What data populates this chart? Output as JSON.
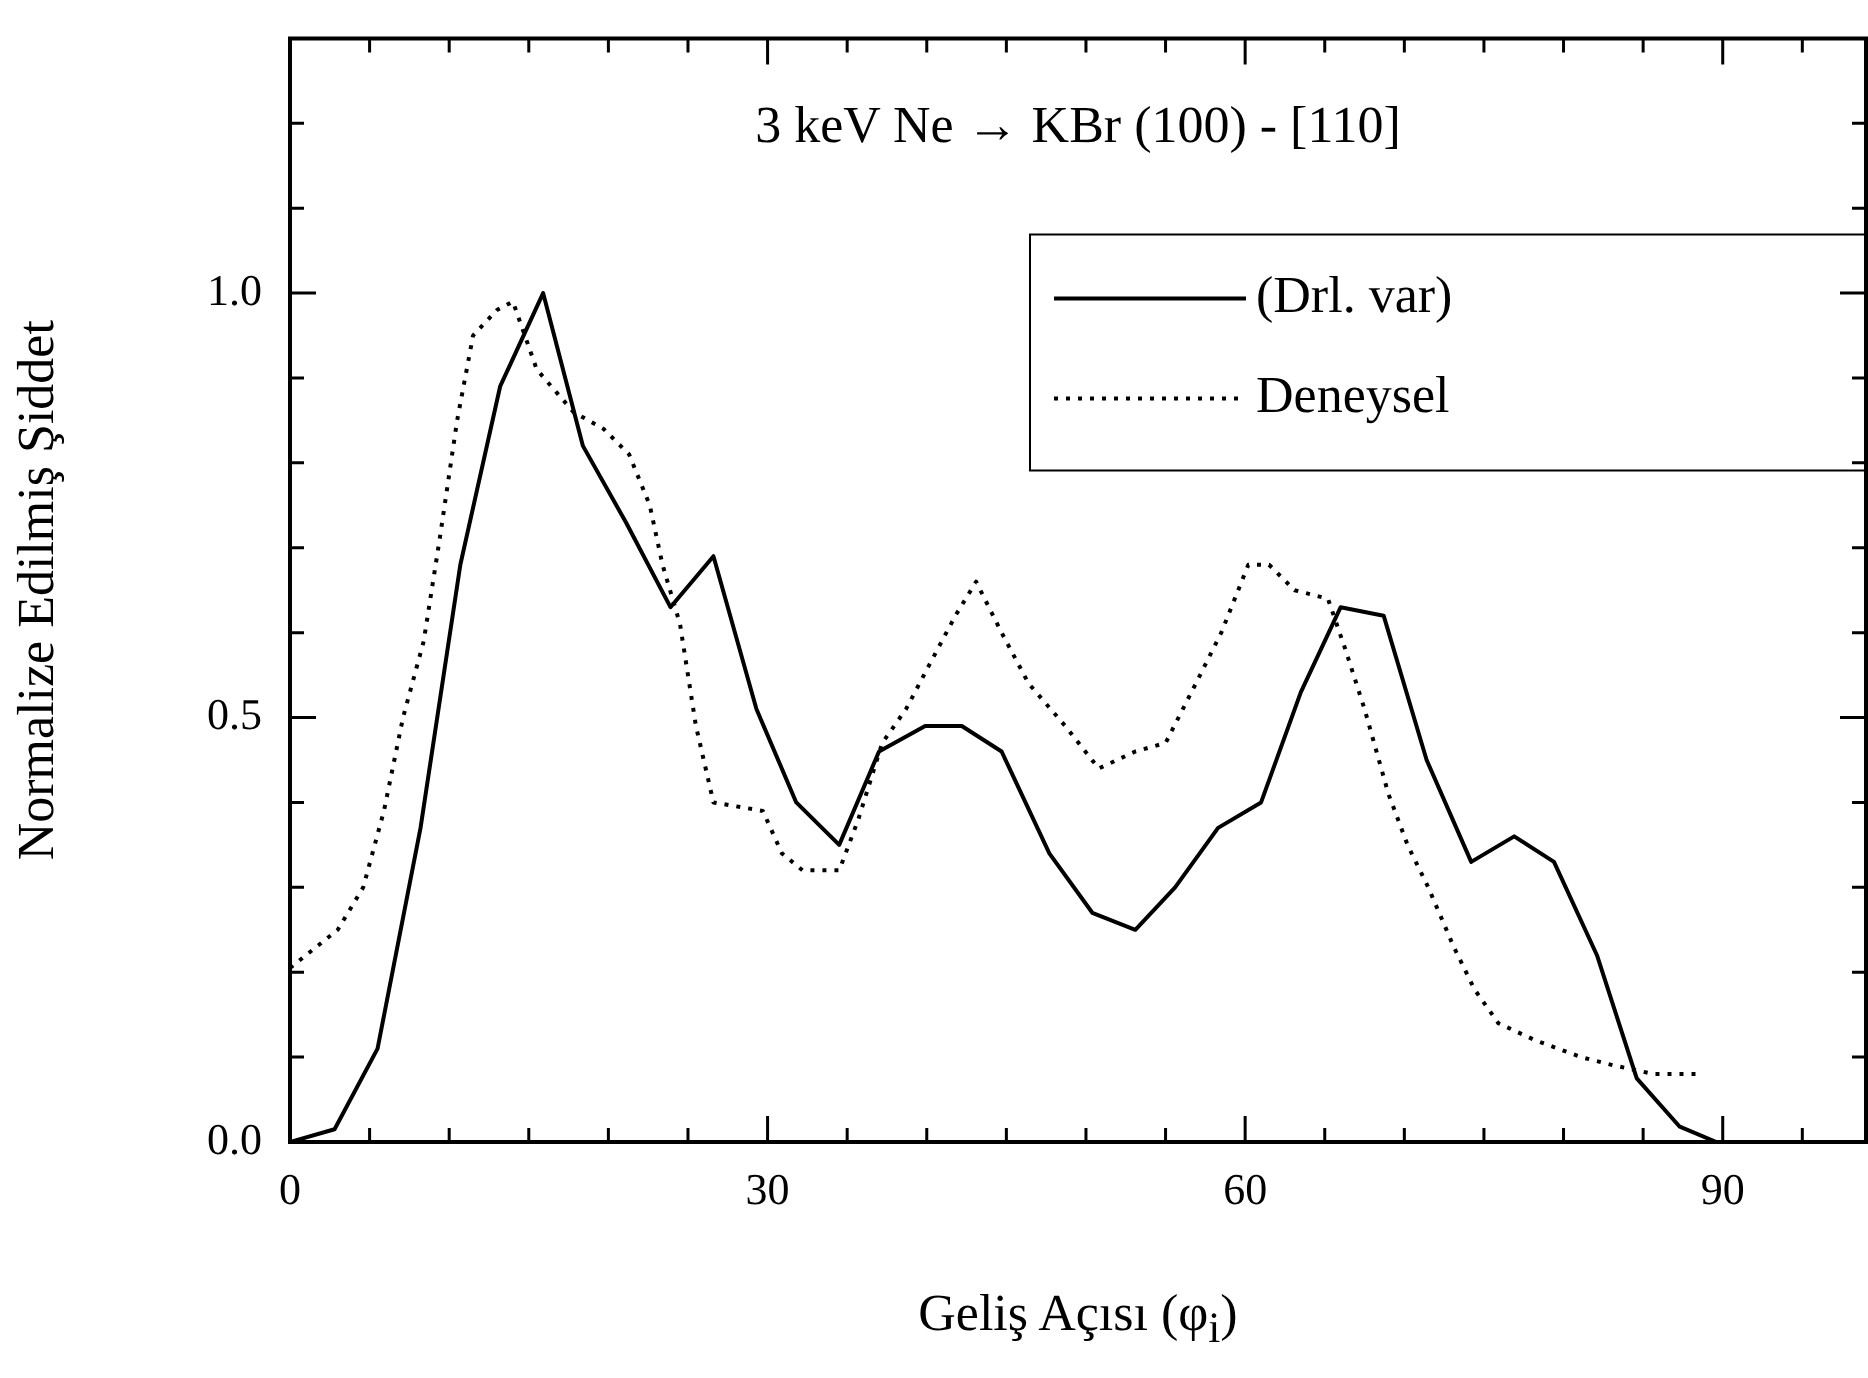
{
  "chart_data": {
    "type": "line",
    "xlabel": "Geliş Açısı (φ$_{i}$)",
    "ylabel": "Normalize Edilmiş Şiddet",
    "annotations": [
      "3 keV Ne → KBr (100) - [110]"
    ],
    "xlim": [
      0,
      99
    ],
    "xticks": [
      0,
      {
        "value": 5,
        "label": null
      },
      {
        "value": 10,
        "label": null
      },
      {
        "value": 15,
        "label": null
      },
      {
        "value": 20,
        "label": null
      },
      {
        "value": 25,
        "label": null
      },
      30,
      {
        "value": 35,
        "label": null
      },
      {
        "value": 40,
        "label": null
      },
      {
        "value": 45,
        "label": null
      },
      {
        "value": 50,
        "label": null
      },
      {
        "value": 55,
        "label": null
      },
      60,
      {
        "value": 65,
        "label": null
      },
      {
        "value": 70,
        "label": null
      },
      {
        "value": 75,
        "label": null
      },
      {
        "value": 80,
        "label": null
      },
      {
        "value": 85,
        "label": null
      },
      90,
      {
        "value": 95,
        "label": null
      }
    ],
    "ylim": [
      0,
      1.3
    ],
    "yticks": [
      {
        "value": 0,
        "label": "0.0"
      },
      {
        "value": 0.1,
        "label": null
      },
      {
        "value": 0.2,
        "label": null
      },
      {
        "value": 0.3,
        "label": null
      },
      {
        "value": 0.4,
        "label": null
      },
      0.5,
      {
        "value": 0.6,
        "label": null
      },
      {
        "value": 0.7,
        "label": null
      },
      {
        "value": 0.8,
        "label": null
      },
      {
        "value": 0.9,
        "label": null
      },
      {
        "value": 1,
        "label": "1.0"
      },
      {
        "value": 1.1,
        "label": null
      },
      {
        "value": 1.2,
        "label": null
      }
    ],
    "legend": "top right",
    "grid": false,
    "marker": "none",
    "series": [
      {
        "name": "(Drl. var)",
        "color": "#000000",
        "line_style": "solid",
        "x": [
          0,
          2.8,
          5.5,
          8.2,
          10.7,
          13.2,
          15.9,
          18.4,
          21.1,
          23.9,
          26.6,
          29.3,
          31.8,
          34.5,
          37.0,
          39.9,
          42.2,
          44.7,
          47.7,
          50.4,
          53.1,
          55.6,
          58.3,
          61.0,
          63.5,
          66.0,
          68.7,
          71.4,
          74.2,
          76.9,
          79.4,
          82.1,
          84.6,
          87.3,
          89.6
        ],
        "values": [
          0,
          0.015,
          0.11,
          0.37,
          0.68,
          0.89,
          1.0,
          0.82,
          0.73,
          0.63,
          0.69,
          0.51,
          0.4,
          0.35,
          0.46,
          0.49,
          0.49,
          0.46,
          0.34,
          0.27,
          0.25,
          0.3,
          0.37,
          0.4,
          0.53,
          0.63,
          0.62,
          0.45,
          0.33,
          0.36,
          0.33,
          0.22,
          0.075,
          0.018,
          0
        ]
      },
      {
        "name": "Deneysel",
        "color": "#000000",
        "line_style": "dotted",
        "x": [
          0,
          3,
          4.6,
          5.9,
          7.1,
          8.4,
          9.4,
          10.5,
          11.5,
          13,
          14,
          15.5,
          17.8,
          19.7,
          21.3,
          22.6,
          23.4,
          24.5,
          25.5,
          26.6,
          29.7,
          30.9,
          32.2,
          34.5,
          35.7,
          37.2,
          38.7,
          40.1,
          41.8,
          43.1,
          44.7,
          46.4,
          48.7,
          50.8,
          53.1,
          55.0,
          56.9,
          58.5,
          60.2,
          61.5,
          63.1,
          65.2,
          66.3,
          67.5,
          69,
          70.2,
          71.5,
          73.1,
          74.4,
          75.9,
          78.2,
          81.1,
          83.2,
          85.7,
          88.6
        ],
        "values": [
          0.205,
          0.25,
          0.3,
          0.39,
          0.5,
          0.59,
          0.71,
          0.85,
          0.95,
          0.98,
          0.99,
          0.91,
          0.86,
          0.84,
          0.81,
          0.75,
          0.68,
          0.61,
          0.49,
          0.4,
          0.39,
          0.34,
          0.32,
          0.32,
          0.38,
          0.47,
          0.51,
          0.56,
          0.62,
          0.66,
          0.6,
          0.54,
          0.49,
          0.44,
          0.46,
          0.47,
          0.54,
          0.6,
          0.68,
          0.68,
          0.65,
          0.64,
          0.58,
          0.51,
          0.41,
          0.35,
          0.3,
          0.23,
          0.18,
          0.14,
          0.12,
          0.1,
          0.09,
          0.08,
          0.08
        ]
      }
    ]
  }
}
